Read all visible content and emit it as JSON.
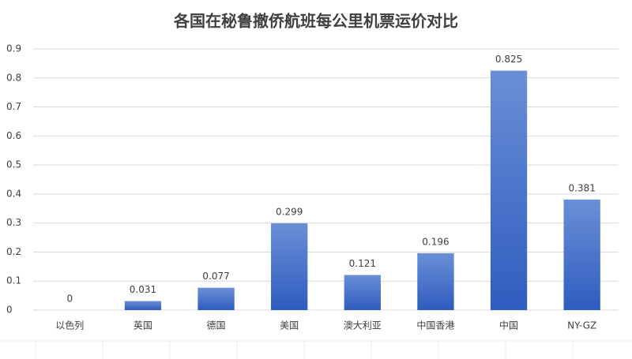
{
  "chart_data": {
    "type": "bar",
    "title": "各国在秘鲁撤侨航班每公里机票运价对比",
    "categories": [
      "以色列",
      "英国",
      "德国",
      "美国",
      "澳大利亚",
      "中国香港",
      "中国",
      "NY-GZ"
    ],
    "values": [
      0,
      0.031,
      0.077,
      0.299,
      0.121,
      0.196,
      0.825,
      0.381
    ],
    "color": "#4472c4",
    "ylim": [
      0,
      0.9
    ],
    "yticks": [
      0,
      0.1,
      0.2,
      0.3,
      0.4,
      0.5,
      0.6,
      0.7,
      0.8,
      0.9
    ],
    "grid": true
  }
}
